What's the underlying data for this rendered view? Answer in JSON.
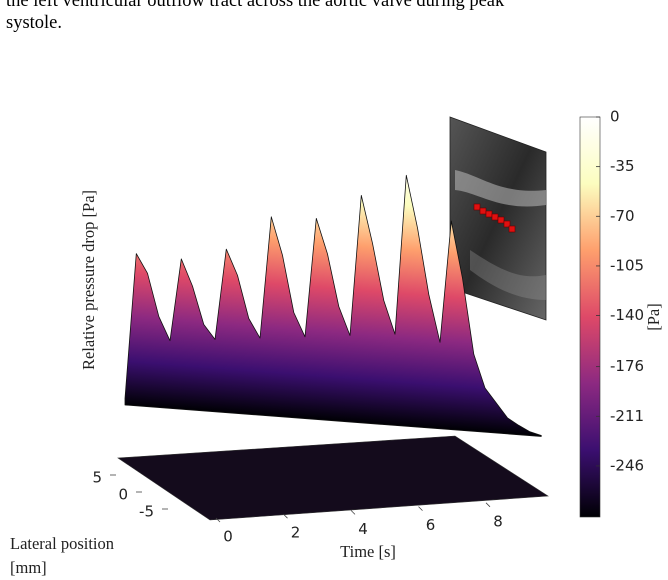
{
  "caption": {
    "lines": [
      "the left ventricular outflow tract across the aortic valve during peak",
      "systole."
    ]
  },
  "chart_data": {
    "type": "surface",
    "zlabel": "Relative pressure drop [Pa]",
    "xlabel": "Time [s]",
    "ylabel": "Lateral position [mm]",
    "colorbar_label": "[Pa]",
    "x": [
      0,
      0.25,
      0.5,
      0.75,
      1,
      1.25,
      1.5,
      1.75,
      2,
      2.25,
      2.5,
      2.75,
      3,
      3.25,
      3.5,
      3.75,
      4,
      4.25,
      4.5,
      4.75,
      5,
      5.25,
      5.5,
      5.75,
      6,
      6.25,
      6.5,
      6.75,
      7,
      7.25,
      7.5,
      7.75,
      8,
      8.25,
      8.5,
      8.75,
      9,
      9.25
    ],
    "values": [
      -275,
      -120,
      -140,
      -185,
      -210,
      -122,
      -150,
      -190,
      -205,
      -108,
      -135,
      -180,
      -200,
      -70,
      -110,
      -170,
      -195,
      -68,
      -105,
      -160,
      -190,
      -40,
      -90,
      -150,
      -185,
      -15,
      -70,
      -140,
      -190,
      -60,
      -120,
      -200,
      -235,
      -250,
      -265,
      -272,
      -278,
      -281
    ],
    "xticks": [
      0,
      2,
      4,
      6,
      8
    ],
    "yticks": [
      5,
      0,
      -5
    ],
    "clim": [
      -282,
      0
    ],
    "cticks": [
      0,
      -35,
      -70,
      -105,
      -140,
      -176,
      -211,
      -246
    ],
    "colormap": [
      "#000004",
      "#3b0f70",
      "#8c2981",
      "#de4968",
      "#fe9f6d",
      "#fcfdbf",
      "#ffffff"
    ]
  }
}
